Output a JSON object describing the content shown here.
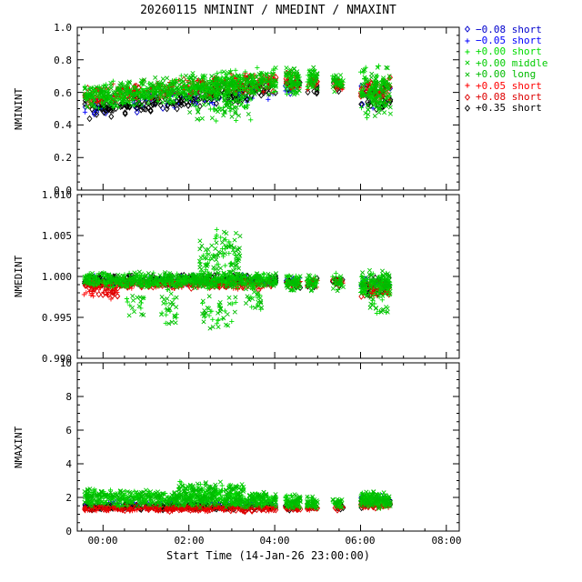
{
  "title": "20260115 NMININT / NMEDINT / NMAXINT",
  "x_axis_label": "Start Time (14-Jan-26 23:00:00)",
  "chart_data": {
    "type": "scatter",
    "seed": 20260115,
    "x_axis": {
      "min": -0.6,
      "max": 8.3,
      "major_ticks": [
        0,
        2,
        4,
        6,
        8
      ],
      "labels": [
        "00:00",
        "02:00",
        "04:00",
        "06:00",
        "08:00"
      ],
      "minor_step": 0.5
    },
    "series": [
      {
        "id": "neg008-short",
        "label": "−0.08 short",
        "color": "#0000cc",
        "marker": "diamond"
      },
      {
        "id": "neg005-short",
        "label": "−0.05 short",
        "color": "#0000ff",
        "marker": "plus"
      },
      {
        "id": "p000-short",
        "label": "+0.00 short",
        "color": "#00dd00",
        "marker": "plus"
      },
      {
        "id": "p000-middle",
        "label": "+0.00 middle",
        "color": "#00cc00",
        "marker": "cross"
      },
      {
        "id": "p000-long",
        "label": "+0.00 long",
        "color": "#00bb00",
        "marker": "cross"
      },
      {
        "id": "p005-short",
        "label": "+0.05 short",
        "color": "#ff0000",
        "marker": "plus"
      },
      {
        "id": "p008-short",
        "label": "+0.08 short",
        "color": "#dd0000",
        "marker": "diamond"
      },
      {
        "id": "p035-short",
        "label": "+0.35 short",
        "color": "#000000",
        "marker": "diamond"
      }
    ],
    "panels": [
      {
        "ylabel": "NMININT",
        "ylim": [
          0.0,
          1.0
        ],
        "minor_step": 0.05,
        "yticks": {
          "values": [
            0.0,
            0.2,
            0.4,
            0.6,
            0.8,
            1.0
          ],
          "labels": [
            "0.0",
            "0.2",
            "0.4",
            "0.6",
            "0.8",
            "1.0"
          ]
        },
        "groups": [
          {
            "series": [
              0,
              1
            ],
            "clusters": [
              {
                "x0": -0.45,
                "x1": 4.05,
                "n": 55,
                "ys": [
                  0.44,
                  0.58
                ],
                "ye": [
                  0.54,
                  0.68
                ]
              },
              {
                "x0": 4.25,
                "x1": 4.6,
                "n": 5,
                "ys": [
                  0.58,
                  0.7
                ]
              },
              {
                "x0": 6.0,
                "x1": 6.7,
                "n": 10,
                "ys": [
                  0.5,
                  0.68
                ]
              }
            ]
          },
          {
            "series": [
              7
            ],
            "clusters": [
              {
                "x0": -0.45,
                "x1": 4.05,
                "n": 210,
                "ys": [
                  0.42,
                  0.57
                ],
                "ye": [
                  0.56,
                  0.7
                ]
              },
              {
                "x0": 4.25,
                "x1": 4.6,
                "n": 14,
                "ys": [
                  0.58,
                  0.7
                ]
              },
              {
                "x0": 4.75,
                "x1": 5.0,
                "n": 8,
                "ys": [
                  0.58,
                  0.68
                ]
              },
              {
                "x0": 5.35,
                "x1": 5.6,
                "n": 8,
                "ys": [
                  0.58,
                  0.68
                ]
              },
              {
                "x0": 6.0,
                "x1": 6.7,
                "n": 32,
                "ys": [
                  0.48,
                  0.66
                ]
              }
            ]
          },
          {
            "series": [
              5,
              6
            ],
            "clusters": [
              {
                "x0": -0.45,
                "x1": 4.05,
                "n": 140,
                "ys": [
                  0.5,
                  0.65
                ],
                "ye": [
                  0.6,
                  0.74
                ]
              },
              {
                "x0": 4.25,
                "x1": 4.6,
                "n": 12,
                "ys": [
                  0.6,
                  0.73
                ]
              },
              {
                "x0": 4.75,
                "x1": 5.0,
                "n": 8,
                "ys": [
                  0.6,
                  0.72
                ]
              },
              {
                "x0": 5.35,
                "x1": 5.6,
                "n": 7,
                "ys": [
                  0.6,
                  0.7
                ]
              },
              {
                "x0": 6.0,
                "x1": 6.7,
                "n": 26,
                "ys": [
                  0.5,
                  0.7
                ]
              }
            ]
          },
          {
            "series": [
              2,
              3,
              4
            ],
            "clusters": [
              {
                "x0": -0.45,
                "x1": 4.05,
                "n": 230,
                "ys": [
                  0.48,
                  0.66
                ],
                "ye": [
                  0.58,
                  0.77
                ]
              },
              {
                "x0": 2.0,
                "x1": 3.45,
                "n": 45,
                "ys": [
                  0.4,
                  0.72
                ]
              },
              {
                "x0": 4.25,
                "x1": 4.6,
                "n": 25,
                "ys": [
                  0.58,
                  0.76
                ]
              },
              {
                "x0": 4.75,
                "x1": 5.0,
                "n": 14,
                "ys": [
                  0.6,
                  0.76
                ]
              },
              {
                "x0": 5.35,
                "x1": 5.6,
                "n": 12,
                "ys": [
                  0.6,
                  0.73
                ]
              },
              {
                "x0": 6.0,
                "x1": 6.7,
                "n": 55,
                "ys": [
                  0.44,
                  0.77
                ]
              }
            ]
          }
        ]
      },
      {
        "ylabel": "NMEDINT",
        "ylim": [
          0.99,
          1.01
        ],
        "minor_step": 0.001,
        "yticks": {
          "values": [
            0.99,
            0.995,
            1.0,
            1.005,
            1.01
          ],
          "labels": [
            "0.990",
            "0.995",
            "1.000",
            "1.005",
            "1.010"
          ]
        },
        "groups": [
          {
            "series": [
              0,
              1
            ],
            "clusters": [
              {
                "x0": -0.45,
                "x1": 4.05,
                "n": 45,
                "ys": [
                  0.9988,
                  1.0002
                ]
              },
              {
                "x0": 4.25,
                "x1": 4.6,
                "n": 4,
                "ys": [
                  0.999,
                  1.0
                ]
              },
              {
                "x0": 6.0,
                "x1": 6.7,
                "n": 8,
                "ys": [
                  0.998,
                  1.0
                ]
              }
            ]
          },
          {
            "series": [
              7
            ],
            "clusters": [
              {
                "x0": -0.45,
                "x1": 4.05,
                "n": 200,
                "ys": [
                  0.9988,
                  1.0003
                ]
              },
              {
                "x0": 4.25,
                "x1": 4.6,
                "n": 12,
                "ys": [
                  0.9985,
                  1.0
                ]
              },
              {
                "x0": 4.75,
                "x1": 5.0,
                "n": 7,
                "ys": [
                  0.9985,
                  1.0
                ]
              },
              {
                "x0": 5.35,
                "x1": 5.6,
                "n": 7,
                "ys": [
                  0.9985,
                  1.0
                ]
              },
              {
                "x0": 6.0,
                "x1": 6.7,
                "n": 30,
                "ys": [
                  0.9975,
                  1.0
                ]
              }
            ]
          },
          {
            "series": [
              5,
              6
            ],
            "clusters": [
              {
                "x0": -0.45,
                "x1": 4.05,
                "n": 140,
                "ys": [
                  0.9983,
                  0.9998
                ]
              },
              {
                "x0": -0.45,
                "x1": 0.4,
                "n": 18,
                "ys": [
                  0.9972,
                  0.999
                ]
              },
              {
                "x0": 4.25,
                "x1": 4.6,
                "n": 10,
                "ys": [
                  0.9985,
                  0.9998
                ]
              },
              {
                "x0": 4.75,
                "x1": 5.0,
                "n": 7,
                "ys": [
                  0.9985,
                  0.9998
                ]
              },
              {
                "x0": 5.35,
                "x1": 5.6,
                "n": 6,
                "ys": [
                  0.9985,
                  0.9998
                ]
              },
              {
                "x0": 6.0,
                "x1": 6.7,
                "n": 24,
                "ys": [
                  0.9975,
                  0.9995
                ]
              }
            ]
          },
          {
            "series": [
              2,
              3,
              4
            ],
            "clusters": [
              {
                "x0": -0.45,
                "x1": 4.05,
                "n": 230,
                "ys": [
                  0.9985,
                  1.0006
                ]
              },
              {
                "x0": 1.35,
                "x1": 1.75,
                "n": 10,
                "ys": [
                  0.9935,
                  0.999
                ]
              },
              {
                "x0": 2.25,
                "x1": 3.2,
                "n": 35,
                "ys": [
                  0.999,
                  1.0062
                ]
              },
              {
                "x0": 2.3,
                "x1": 3.1,
                "n": 14,
                "ys": [
                  0.9935,
                  0.998
                ]
              },
              {
                "x0": 3.3,
                "x1": 3.7,
                "n": 8,
                "ys": [
                  0.9955,
                  0.999
                ]
              },
              {
                "x0": 0.55,
                "x1": 0.95,
                "n": 6,
                "ys": [
                  0.995,
                  0.998
                ]
              },
              {
                "x0": 4.25,
                "x1": 4.6,
                "n": 22,
                "ys": [
                  0.998,
                  1.0005
                ]
              },
              {
                "x0": 4.75,
                "x1": 5.0,
                "n": 12,
                "ys": [
                  0.998,
                  1.0005
                ]
              },
              {
                "x0": 5.35,
                "x1": 5.6,
                "n": 10,
                "ys": [
                  0.998,
                  1.0005
                ]
              },
              {
                "x0": 6.0,
                "x1": 6.7,
                "n": 50,
                "ys": [
                  0.9975,
                  1.0008
                ]
              },
              {
                "x0": 6.2,
                "x1": 6.7,
                "n": 8,
                "ys": [
                  0.9952,
                  0.998
                ]
              }
            ]
          }
        ]
      },
      {
        "ylabel": "NMAXINT",
        "ylim": [
          0,
          10
        ],
        "minor_step": 0.5,
        "yticks": {
          "values": [
            0,
            2,
            4,
            6,
            8,
            10
          ],
          "labels": [
            "0",
            "2",
            "4",
            "6",
            "8",
            "10"
          ]
        },
        "groups": [
          {
            "series": [
              0,
              1
            ],
            "clusters": [
              {
                "x0": -0.45,
                "x1": 4.05,
                "n": 45,
                "ys": [
                  1.3,
                  1.8
                ]
              },
              {
                "x0": 6.0,
                "x1": 6.7,
                "n": 8,
                "ys": [
                  1.4,
                  2.1
                ]
              }
            ]
          },
          {
            "series": [
              7
            ],
            "clusters": [
              {
                "x0": -0.45,
                "x1": 4.05,
                "n": 200,
                "ys": [
                  1.25,
                  1.65
                ]
              },
              {
                "x0": 4.25,
                "x1": 4.6,
                "n": 12,
                "ys": [
                  1.2,
                  1.6
                ]
              },
              {
                "x0": 4.75,
                "x1": 5.0,
                "n": 7,
                "ys": [
                  1.2,
                  1.6
                ]
              },
              {
                "x0": 5.35,
                "x1": 5.6,
                "n": 7,
                "ys": [
                  1.2,
                  1.6
                ]
              },
              {
                "x0": 6.0,
                "x1": 6.7,
                "n": 30,
                "ys": [
                  1.3,
                  2.1
                ]
              }
            ]
          },
          {
            "series": [
              5,
              6
            ],
            "clusters": [
              {
                "x0": -0.45,
                "x1": 4.05,
                "n": 140,
                "ys": [
                  1.15,
                  1.55
                ]
              },
              {
                "x0": 4.25,
                "x1": 4.6,
                "n": 10,
                "ys": [
                  1.2,
                  1.5
                ]
              },
              {
                "x0": 4.75,
                "x1": 5.0,
                "n": 7,
                "ys": [
                  1.2,
                  1.5
                ]
              },
              {
                "x0": 5.35,
                "x1": 5.6,
                "n": 6,
                "ys": [
                  1.2,
                  1.5
                ]
              },
              {
                "x0": 6.0,
                "x1": 6.7,
                "n": 24,
                "ys": [
                  1.3,
                  1.8
                ]
              }
            ]
          },
          {
            "series": [
              2,
              3,
              4
            ],
            "clusters": [
              {
                "x0": -0.45,
                "x1": 4.05,
                "n": 230,
                "ys": [
                  1.45,
                  2.55
                ],
                "ye": [
                  1.35,
                  2.3
                ]
              },
              {
                "x0": 1.7,
                "x1": 3.3,
                "n": 45,
                "ys": [
                  1.9,
                  3.0
                ]
              },
              {
                "x0": 4.25,
                "x1": 4.6,
                "n": 25,
                "ys": [
                  1.3,
                  2.2
                ]
              },
              {
                "x0": 4.75,
                "x1": 5.0,
                "n": 14,
                "ys": [
                  1.3,
                  2.1
                ]
              },
              {
                "x0": 5.35,
                "x1": 5.6,
                "n": 12,
                "ys": [
                  1.3,
                  2.0
                ]
              },
              {
                "x0": 6.0,
                "x1": 6.7,
                "n": 55,
                "ys": [
                  1.3,
                  2.4
                ]
              }
            ]
          }
        ]
      }
    ]
  }
}
